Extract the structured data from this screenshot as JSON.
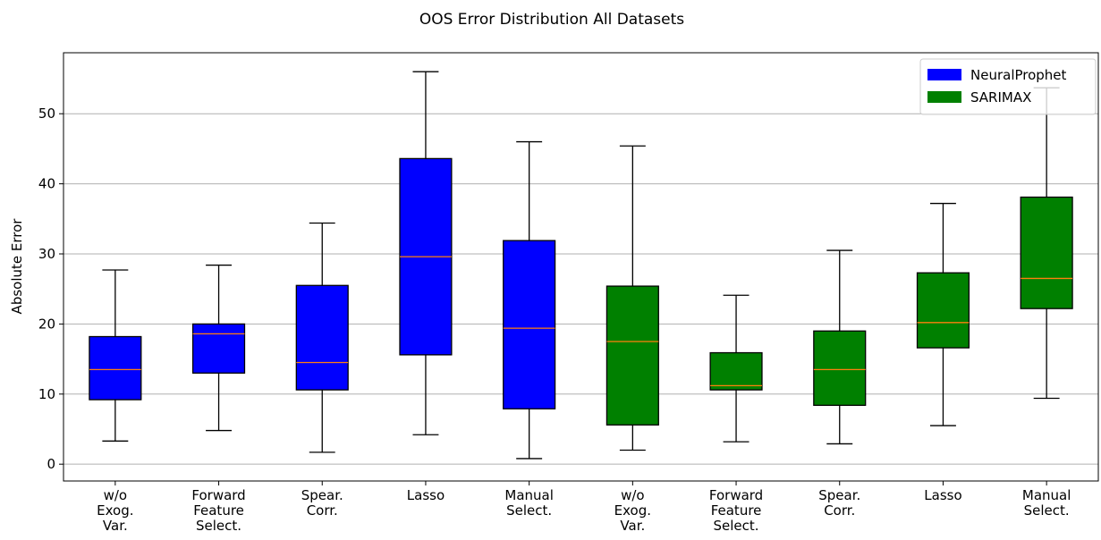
{
  "chart_data": {
    "type": "box",
    "title": "OOS Error Distribution All Datasets",
    "y_label": "Absolute Error",
    "categories": [
      "w/o\nExog.\nVar.",
      "Forward\nFeature\nSelect.",
      "Spear.\nCorr.",
      "Lasso",
      "Manual\nSelect.",
      "w/o\nExog.\nVar.",
      "Forward\nFeature\nSelect.",
      "Spear.\nCorr.",
      "Lasso",
      "Manual\nSelect."
    ],
    "series": [
      {
        "name": "NeuralProphet",
        "color": "#0000ff",
        "boxes": [
          {
            "whislo": 3.3,
            "q1": 9.2,
            "med": 13.5,
            "q3": 18.2,
            "whishi": 27.7
          },
          {
            "whislo": 4.8,
            "q1": 13.0,
            "med": 18.6,
            "q3": 20.0,
            "whishi": 28.4
          },
          {
            "whislo": 1.7,
            "q1": 10.6,
            "med": 14.5,
            "q3": 25.5,
            "whishi": 34.4
          },
          {
            "whislo": 4.2,
            "q1": 15.6,
            "med": 29.6,
            "q3": 43.6,
            "whishi": 56.0
          },
          {
            "whislo": 0.8,
            "q1": 7.9,
            "med": 19.4,
            "q3": 31.9,
            "whishi": 46.0
          }
        ]
      },
      {
        "name": "SARIMAX",
        "color": "#008000",
        "boxes": [
          {
            "whislo": 2.0,
            "q1": 5.6,
            "med": 17.5,
            "q3": 25.4,
            "whishi": 45.4
          },
          {
            "whislo": 3.2,
            "q1": 10.6,
            "med": 11.2,
            "q3": 15.9,
            "whishi": 24.1
          },
          {
            "whislo": 2.9,
            "q1": 8.4,
            "med": 13.5,
            "q3": 19.0,
            "whishi": 30.5
          },
          {
            "whislo": 5.5,
            "q1": 16.6,
            "med": 20.2,
            "q3": 27.3,
            "whishi": 37.2
          },
          {
            "whislo": 9.4,
            "q1": 22.2,
            "med": 26.5,
            "q3": 38.1,
            "whishi": 53.7
          }
        ]
      }
    ],
    "median_color": "#ff7f0e",
    "ylim": [
      -2.4,
      58.7
    ],
    "yticks": [
      0,
      10,
      20,
      30,
      40,
      50
    ],
    "grid": true,
    "legend": "upper right"
  }
}
